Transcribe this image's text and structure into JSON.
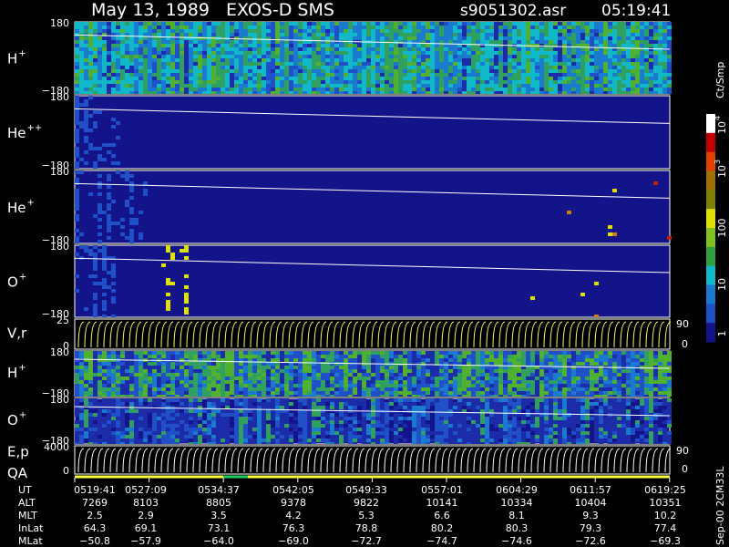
{
  "header": {
    "title": "May 13, 1989   EXOS-D SMS",
    "file": "s9051302.asr",
    "time": "05:19:41"
  },
  "panels": [
    {
      "label": "H",
      "sup": "+",
      "top": "180",
      "bottom": "−180"
    },
    {
      "label": "He",
      "sup": "++",
      "top": "180",
      "bottom": "−180"
    },
    {
      "label": "He",
      "sup": "+",
      "top": "180",
      "bottom": "−180"
    },
    {
      "label": "O",
      "sup": "+",
      "top": "180",
      "bottom": "−180"
    },
    {
      "label": "V,r",
      "top": "25",
      "bottom": "0",
      "right_top": "90",
      "right_bottom": "0"
    },
    {
      "label": "H",
      "sup": "+",
      "top": "180",
      "bottom": "−180"
    },
    {
      "label": "O",
      "sup": "+",
      "top": "180",
      "bottom": "−180"
    },
    {
      "label": "E,p",
      "label2": "QA",
      "top": "4000",
      "bottom": "0",
      "right_top": "90",
      "right_bottom": "0"
    }
  ],
  "colorbar": {
    "unit": "Ct/Smp",
    "labels": [
      {
        "base": "10",
        "exp": "4"
      },
      {
        "base": "10",
        "exp": "3"
      },
      {
        "base": "100"
      },
      {
        "base": "10"
      },
      {
        "base": "1"
      }
    ]
  },
  "table": {
    "rows": [
      {
        "label": "UT",
        "values": [
          "0519:41",
          "0527:09",
          "0534:37",
          "0542:05",
          "0549:33",
          "0557:01",
          "0604:29",
          "0611:57",
          "0619:25"
        ]
      },
      {
        "label": "ALT",
        "values": [
          "7269",
          "8103",
          "8805",
          "9378",
          "9822",
          "10141",
          "10334",
          "10404",
          "10351"
        ]
      },
      {
        "label": "MLT",
        "values": [
          "2.5",
          "2.9",
          "3.5",
          "4.2",
          "5.3",
          "6.6",
          "8.1",
          "9.3",
          "10.2"
        ]
      },
      {
        "label": "InLat",
        "values": [
          "64.3",
          "69.1",
          "73.1",
          "76.3",
          "78.8",
          "80.2",
          "80.3",
          "79.3",
          "77.4"
        ]
      },
      {
        "label": "MLat",
        "values": [
          "−50.8",
          "−57.9",
          "−64.0",
          "−69.0",
          "−72.7",
          "−74.7",
          "−74.6",
          "−72.6",
          "−69.3"
        ]
      }
    ]
  },
  "footer": "Sep-00 2CM33L"
}
